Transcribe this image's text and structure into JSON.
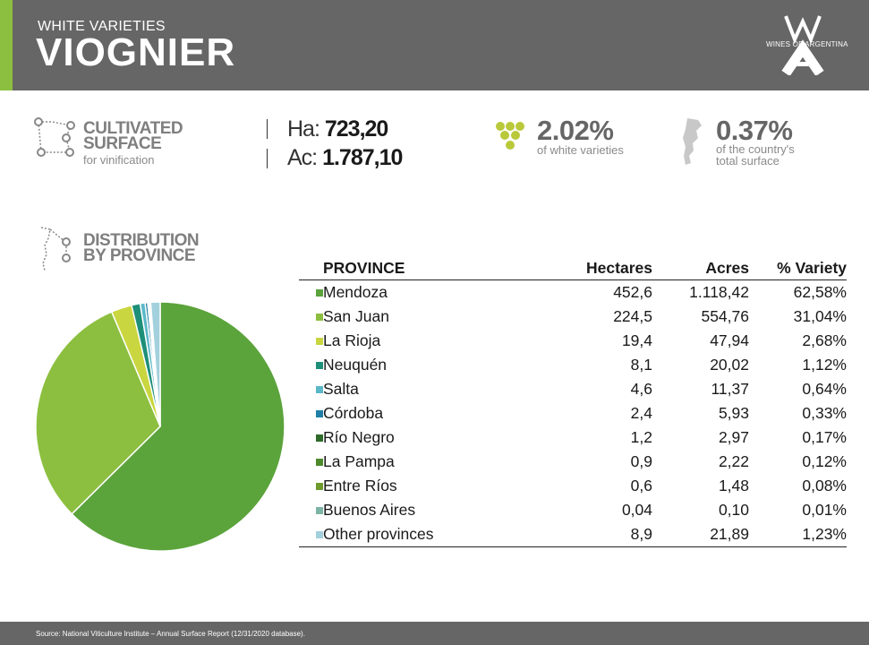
{
  "header": {
    "subtitle": "WHITE VARIETIES",
    "title": "VIOGNIER",
    "logo_text": "WINES OF ARGENTINA",
    "accent_color": "#8cbf3f",
    "bar_color": "#666666"
  },
  "cultivated": {
    "heading_line1": "CULTIVATED",
    "heading_line2": "SURFACE",
    "sub": "for vinification",
    "ha_label": "Ha:",
    "ha_value": "723,20",
    "ac_label": "Ac:",
    "ac_value": "1.787,10"
  },
  "white_share": {
    "value": "2.02%",
    "caption": "of white varieties"
  },
  "country_share": {
    "value": "0.37%",
    "caption_line1": "of the country's",
    "caption_line2": "total surface"
  },
  "distribution": {
    "heading_line1": "DISTRIBUTION",
    "heading_line2": "BY PROVINCE"
  },
  "chart_data": {
    "type": "pie",
    "title": "Distribution by province",
    "columns": [
      "PROVINCE",
      "Hectares",
      "Acres",
      "% Variety"
    ],
    "categories": [
      "Mendoza",
      "San Juan",
      "La Rioja",
      "Neuquén",
      "Salta",
      "Córdoba",
      "Río Negro",
      "La Pampa",
      "Entre Ríos",
      "Buenos Aires",
      "Other provinces"
    ],
    "values": [
      62.58,
      31.04,
      2.68,
      1.12,
      0.64,
      0.33,
      0.17,
      0.12,
      0.08,
      0.01,
      1.23
    ],
    "hectares": [
      "452,6",
      "224,5",
      "19,4",
      "8,1",
      "4,6",
      "2,4",
      "1,2",
      "0,9",
      "0,6",
      "0,04",
      "8,9"
    ],
    "acres": [
      "1.118,42",
      "554,76",
      "47,94",
      "20,02",
      "11,37",
      "5,93",
      "2,97",
      "2,22",
      "1,48",
      "0,10",
      "21,89"
    ],
    "percent_labels": [
      "62,58%",
      "31,04%",
      "2,68%",
      "1,12%",
      "0,64%",
      "0,33%",
      "0,17%",
      "0,12%",
      "0,08%",
      "0,01%",
      "1,23%"
    ],
    "colors": [
      "#5ba33b",
      "#8cbf3f",
      "#c9d63f",
      "#1e8f78",
      "#5bb8c9",
      "#1f7fa6",
      "#2e6b2a",
      "#4d8a2d",
      "#6f9a2c",
      "#7cb5a5",
      "#a3d0dd"
    ]
  },
  "footer": {
    "source": "Source: National Viticulture Institute – Annual Surface Report (12/31/2020 database)."
  }
}
